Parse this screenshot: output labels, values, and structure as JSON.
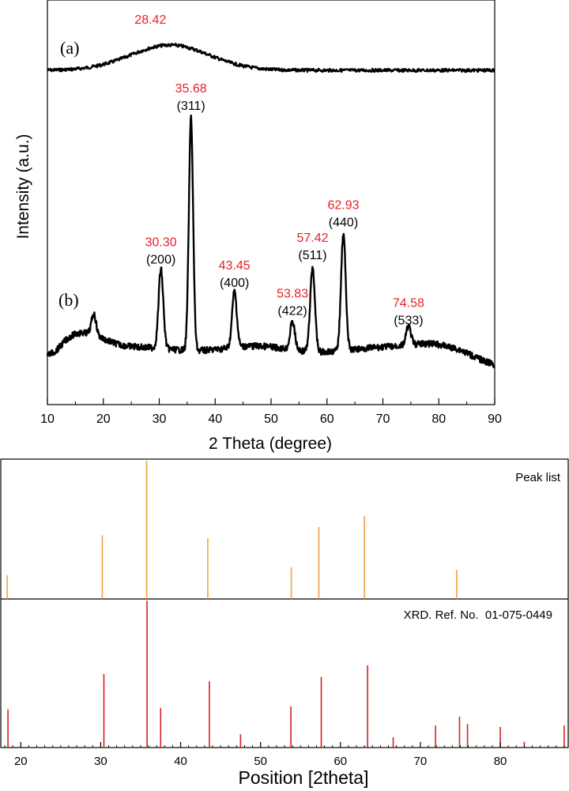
{
  "colors": {
    "axis": "#000000",
    "trace": "#000000",
    "peak_label": "#e8202a",
    "hkl_label": "#000000",
    "peak_list": "#f0a040",
    "reference": "#d62020"
  },
  "chart_data": [
    {
      "type": "line",
      "xlabel": "2 Theta (degree)",
      "ylabel": "Intensity (a.u.)",
      "xlim": [
        10,
        90
      ],
      "xticks": [
        "10",
        "20",
        "30",
        "40",
        "50",
        "60",
        "70",
        "80",
        "90"
      ],
      "series": [
        {
          "name": "(a)",
          "kind": "amorphous",
          "broad_peak_center": 28.42
        },
        {
          "name": "(b)",
          "kind": "crystalline",
          "peaks": [
            {
              "x": 18.3,
              "rel": 0.09
            },
            {
              "x": 30.3,
              "rel": 0.34
            },
            {
              "x": 35.68,
              "rel": 1.0
            },
            {
              "x": 43.45,
              "rel": 0.24
            },
            {
              "x": 53.83,
              "rel": 0.12
            },
            {
              "x": 57.42,
              "rel": 0.36
            },
            {
              "x": 62.93,
              "rel": 0.5
            },
            {
              "x": 74.58,
              "rel": 0.08
            }
          ]
        }
      ],
      "annotations": [
        {
          "series": "(a)",
          "x": 28.42,
          "value": "28.42"
        },
        {
          "series": "(b)",
          "x": 30.3,
          "value": "30.30",
          "hkl": "(200)"
        },
        {
          "series": "(b)",
          "x": 35.68,
          "value": "35.68",
          "hkl": "(311)"
        },
        {
          "series": "(b)",
          "x": 43.45,
          "value": "43.45",
          "hkl": "(400)"
        },
        {
          "series": "(b)",
          "x": 53.83,
          "value": "53.83",
          "hkl": "(422)"
        },
        {
          "series": "(b)",
          "x": 57.42,
          "value": "57.42",
          "hkl": "(511)"
        },
        {
          "series": "(b)",
          "x": 62.93,
          "value": "62.93",
          "hkl": "(440)"
        },
        {
          "series": "(b)",
          "x": 74.58,
          "value": "74.58",
          "hkl": "(533)"
        }
      ]
    },
    {
      "type": "bar",
      "xlabel": "Position [2theta]",
      "xlim": [
        17.5,
        88.5
      ],
      "xticks": [
        "20",
        "30",
        "40",
        "50",
        "60",
        "70",
        "80"
      ],
      "panels": [
        {
          "name": "Peak list",
          "x": [
            18.3,
            30.2,
            35.75,
            43.4,
            53.85,
            57.3,
            63.0,
            74.55
          ],
          "values": [
            0.17,
            0.46,
            1.0,
            0.44,
            0.23,
            0.52,
            0.6,
            0.21
          ]
        },
        {
          "name": "XRD. Ref. No.  01-075-0449",
          "x": [
            18.4,
            30.4,
            35.8,
            37.5,
            43.6,
            47.5,
            53.8,
            57.6,
            63.4,
            66.6,
            71.9,
            74.9,
            75.9,
            80.0,
            83.0,
            88.0
          ],
          "values": [
            0.26,
            0.5,
            1.0,
            0.27,
            0.45,
            0.09,
            0.28,
            0.48,
            0.56,
            0.07,
            0.15,
            0.21,
            0.16,
            0.14,
            0.04,
            0.15
          ]
        }
      ]
    }
  ]
}
